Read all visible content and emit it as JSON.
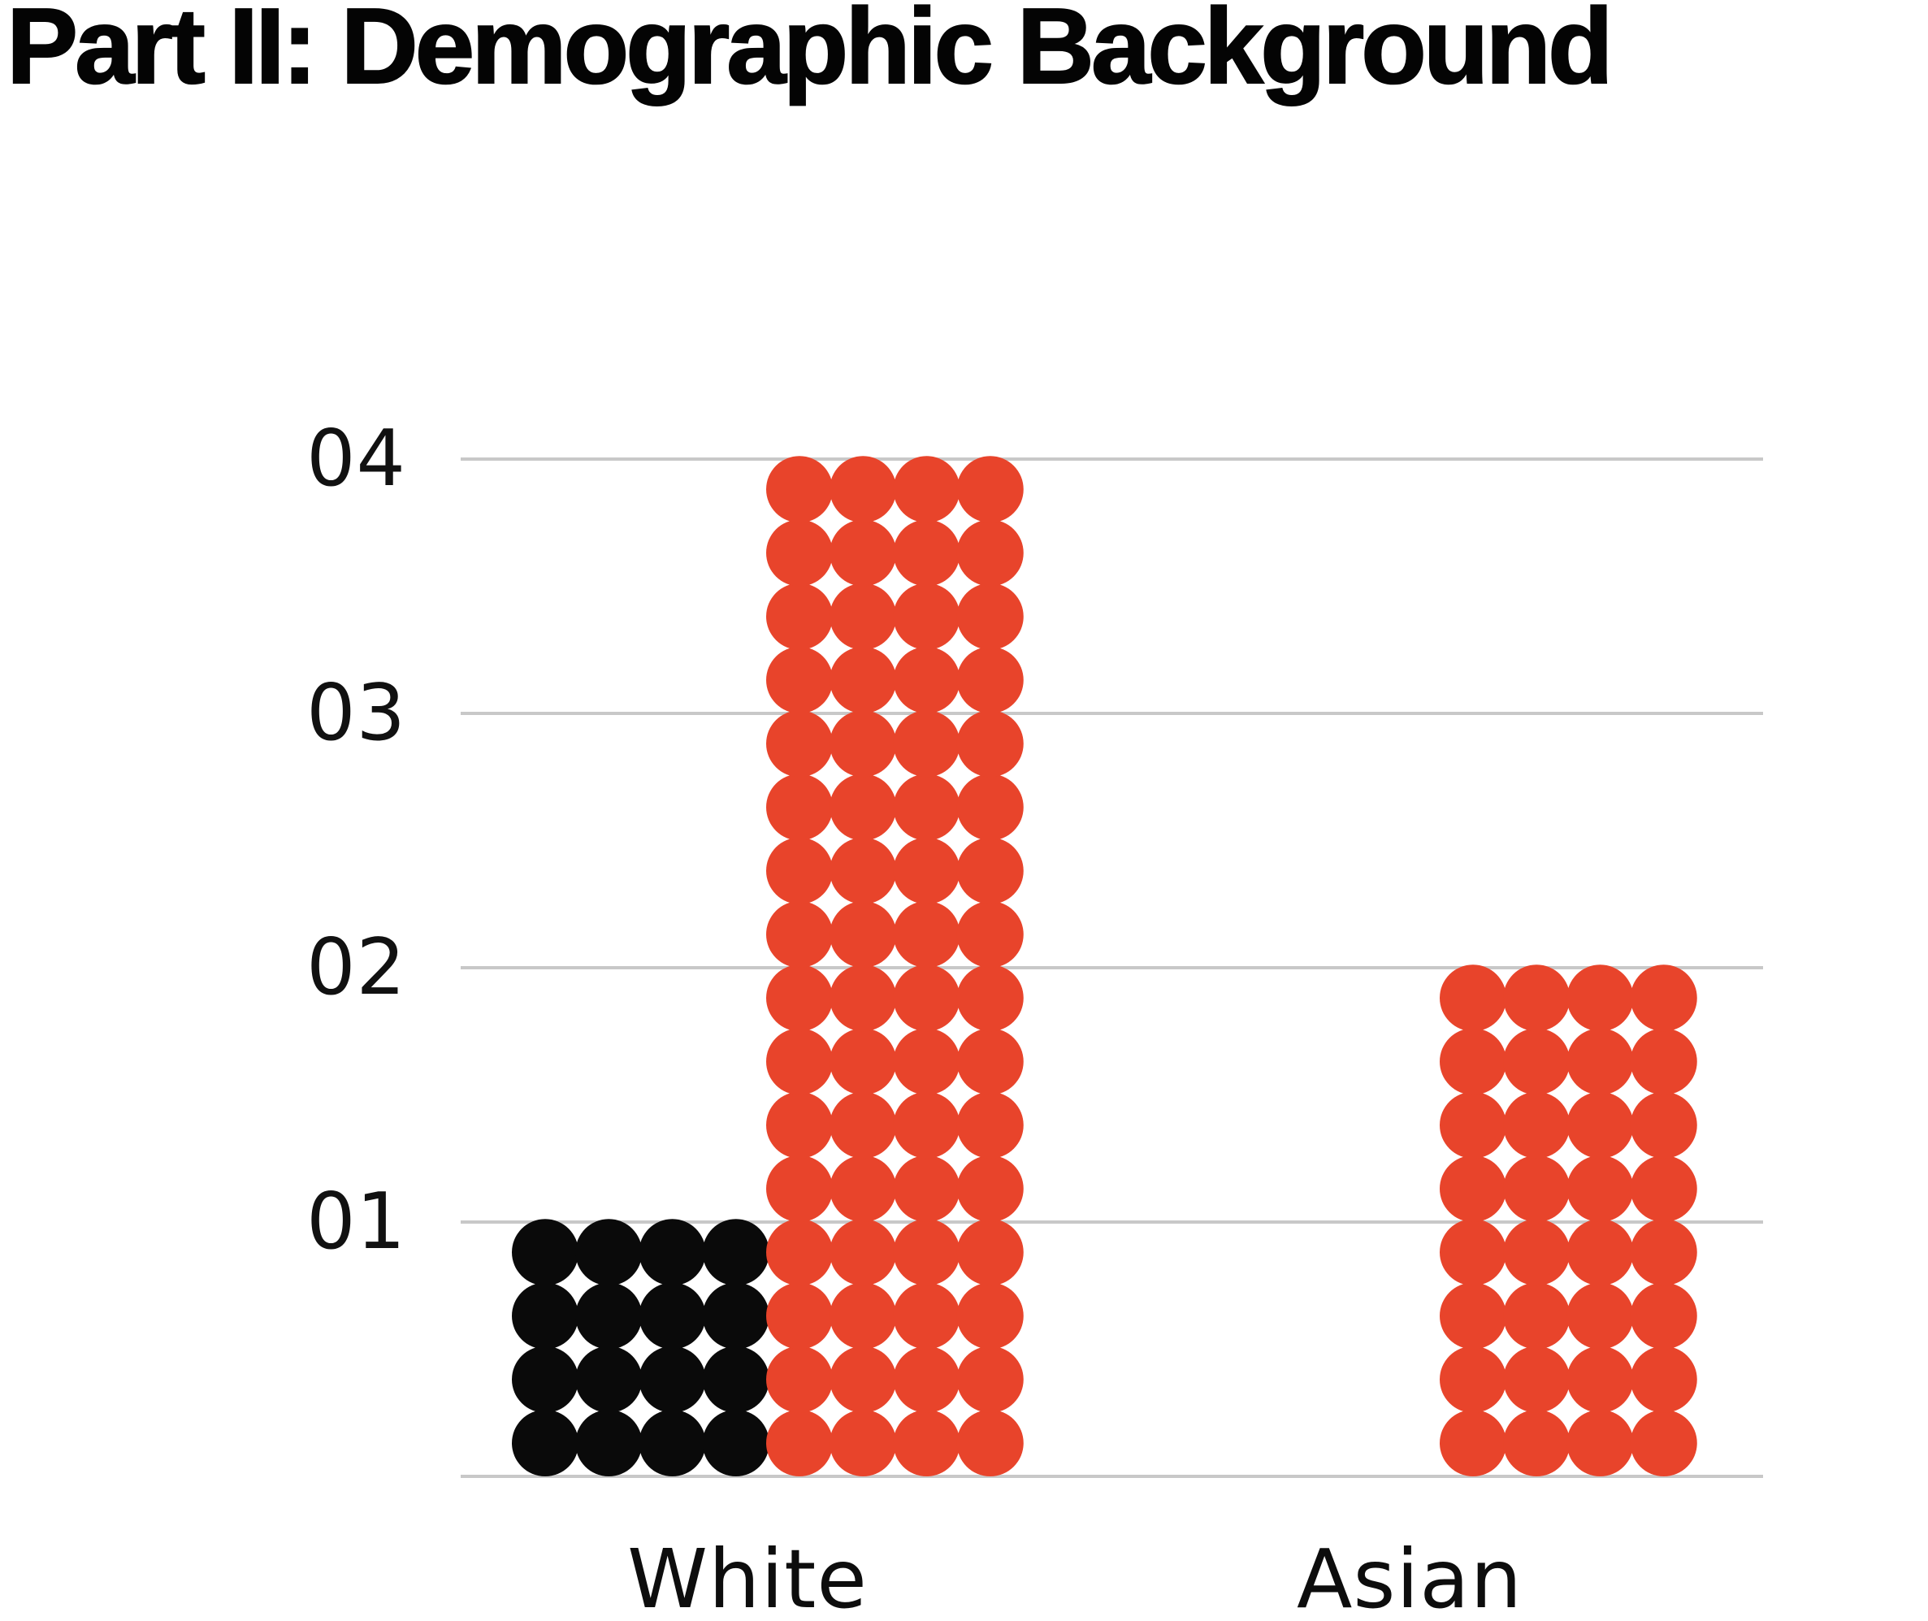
{
  "chart_data": {
    "type": "bar",
    "style": "dot-matrix waffle columns; each vertical unit = 4 rows of 4 dots (16 dots per unit)",
    "title": "Part II: Demographic Background",
    "categories": [
      "White",
      "Asian"
    ],
    "series": [
      {
        "name": "black",
        "color": "#0a0a0a",
        "values": [
          1,
          0
        ],
        "dot_counts": [
          16,
          0
        ]
      },
      {
        "name": "red",
        "color": "#e8442b",
        "values": [
          4,
          2
        ],
        "dot_counts": [
          64,
          32
        ]
      }
    ],
    "ytick_labels": [
      "01",
      "02",
      "03",
      "04"
    ],
    "ylim": [
      0,
      4
    ],
    "grid": true,
    "gridline_color": "#c8c8c8",
    "baseline_color": "#c8c8c8",
    "legend": "none"
  }
}
